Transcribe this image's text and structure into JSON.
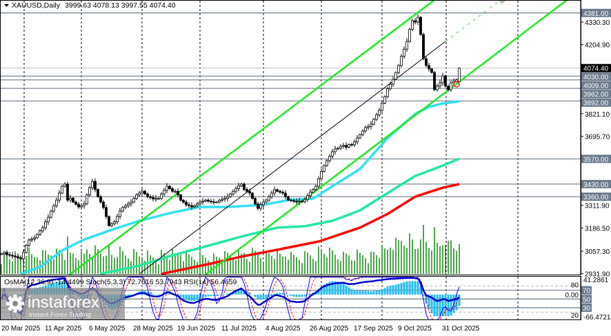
{
  "header": {
    "symbol": "XAUUSD,Daily",
    "ohlc": "3999.63 4078.13 3997.55 4074.40",
    "menu_icon": "triangle-down-icon"
  },
  "indicator_label": "OsMA(12,26,9) -14.4499  Stoch(5,3,3) 72.7516 53.7943  RSI(14) 56.4659",
  "logo": {
    "name": "instaforex",
    "tagline": "Instant Forex Trading",
    "icon": "gear-icon"
  },
  "colors": {
    "bull_candle": "#ffffff",
    "bear_candle": "#000000",
    "volume": "#008000",
    "ma_fast": "#33e0f0",
    "ma_mid": "#22e8a0",
    "ma_slow": "#ff0000",
    "channel": "#22e822",
    "level_line": "#6b7b8c",
    "osma": "#22bbee",
    "stoch_main": "#0000ff",
    "stoch_signal": "#ff0000",
    "rsi": "#0000cc"
  },
  "price_axis": {
    "ticks": [
      "4330.30",
      "4204.90",
      "3821.10",
      "3695.70",
      "3311.90",
      "3186.50",
      "3057.30",
      "2931.90"
    ],
    "tick_values": [
      4330.3,
      4204.9,
      3821.1,
      3695.7,
      3311.9,
      3186.5,
      3057.3,
      2931.9
    ],
    "levels": [
      "4381.00",
      "4030.00",
      "4009.00",
      "3962.00",
      "3892.00",
      "3570.00",
      "3430.00",
      "3360.00"
    ],
    "level_values": [
      4381,
      4030,
      4009,
      3962,
      3892,
      3570,
      3430,
      3360
    ],
    "current_price": "4074.40",
    "current_value": 4074.4
  },
  "indicator_axis": {
    "max_label": "41.2861",
    "min_label": "-66.4721",
    "zero_label": "0.00",
    "levels": [
      "80",
      "70",
      "50",
      "30",
      "20"
    ],
    "level_values": [
      80,
      70,
      50,
      30,
      20
    ]
  },
  "date_axis": [
    "20 Mar 2025",
    "11 Apr 2025",
    "6 May 2025",
    "28 May 2025",
    "19 Jun 2025",
    "11 Jul 2025",
    "4 Aug 2025",
    "26 Aug 2025",
    "17 Sep 2025",
    "9 Oct 2025",
    "31 Oct 2025"
  ],
  "chart_data": {
    "type": "candlestick",
    "title": "XAUUSD,Daily",
    "ylim": [
      2931.9,
      4381
    ],
    "grid": "vertical dashed",
    "close": [
      3042,
      3050,
      3038,
      3035,
      3030,
      3027,
      3020,
      3015,
      3050,
      3090,
      3119,
      3125,
      3131,
      3150,
      3170,
      3188,
      3220,
      3245,
      3280,
      3310,
      3341,
      3380,
      3418,
      3430,
      3341,
      3352,
      3330,
      3318,
      3303,
      3310,
      3320,
      3370,
      3410,
      3445,
      3400,
      3360,
      3330,
      3300,
      3250,
      3199,
      3210,
      3220,
      3250,
      3280,
      3300,
      3310,
      3320,
      3330,
      3350,
      3370,
      3380,
      3391,
      3375,
      3360,
      3355,
      3348,
      3350,
      3350,
      3375,
      3395,
      3418,
      3405,
      3390,
      3390,
      3370,
      3340,
      3330,
      3315,
      3310,
      3303,
      3310,
      3320,
      3330,
      3335,
      3341,
      3335,
      3332,
      3330,
      3330,
      3340,
      3345,
      3350,
      3360,
      3375,
      3390,
      3405,
      3420,
      3430,
      3400,
      3390,
      3380,
      3350,
      3320,
      3295,
      3315,
      3330,
      3341,
      3360,
      3380,
      3399,
      3390,
      3385,
      3380,
      3360,
      3341,
      3338,
      3335,
      3330,
      3335,
      3333,
      3345,
      3365,
      3385,
      3400,
      3418,
      3460,
      3500,
      3533,
      3560,
      3585,
      3610,
      3625,
      3629,
      3640,
      3645,
      3635,
      3650,
      3648,
      3665,
      3686,
      3705,
      3725,
      3744,
      3750,
      3763,
      3790,
      3815,
      3840,
      3880,
      3916,
      3960,
      3985,
      4012,
      4050,
      4089,
      4140,
      4180,
      4223,
      4290,
      4338,
      4330,
      4357,
      4261,
      4127,
      4089,
      4070,
      4050,
      3955,
      3975,
      3993,
      4031,
      3974,
      3955,
      3993,
      4001,
      4010,
      4074
    ],
    "last_bar": {
      "open": 3999.63,
      "high": 4078.13,
      "low": 3997.55,
      "close": 4074.4
    },
    "moving_averages": {
      "fast": [
        [
          7,
          2931
        ],
        [
          14,
          2969
        ],
        [
          22,
          3061
        ],
        [
          30,
          3122
        ],
        [
          40,
          3176
        ],
        [
          50,
          3226
        ],
        [
          62,
          3272
        ],
        [
          72,
          3303
        ],
        [
          82,
          3303
        ],
        [
          95,
          3315
        ],
        [
          104,
          3341
        ],
        [
          113,
          3349
        ],
        [
          120,
          3418
        ],
        [
          130,
          3514
        ],
        [
          140,
          3686
        ],
        [
          150,
          3820
        ],
        [
          155,
          3859
        ],
        [
          160,
          3878
        ],
        [
          166,
          3890
        ]
      ],
      "mid": [
        [
          36,
          2931
        ],
        [
          50,
          2977
        ],
        [
          62,
          3034
        ],
        [
          75,
          3088
        ],
        [
          87,
          3138
        ],
        [
          100,
          3188
        ],
        [
          110,
          3196
        ],
        [
          120,
          3226
        ],
        [
          130,
          3284
        ],
        [
          140,
          3380
        ],
        [
          150,
          3475
        ],
        [
          160,
          3533
        ],
        [
          166,
          3571
        ]
      ],
      "slow": [
        [
          58,
          2931
        ],
        [
          75,
          2985
        ],
        [
          87,
          3027
        ],
        [
          100,
          3065
        ],
        [
          115,
          3111
        ],
        [
          130,
          3188
        ],
        [
          140,
          3264
        ],
        [
          150,
          3360
        ],
        [
          160,
          3410
        ],
        [
          166,
          3430
        ]
      ]
    },
    "trendlines": {
      "channel_upper": [
        [
          24,
          2919
        ],
        [
          157,
          4453
        ]
      ],
      "channel_lower": [
        [
          74,
          2927
        ],
        [
          205,
          4453
        ]
      ],
      "channel_middle": [
        [
          50,
          2931
        ],
        [
          161,
          4223
        ]
      ],
      "channel_middle_projection": [
        [
          161,
          4223
        ],
        [
          181,
          4453
        ]
      ]
    }
  }
}
